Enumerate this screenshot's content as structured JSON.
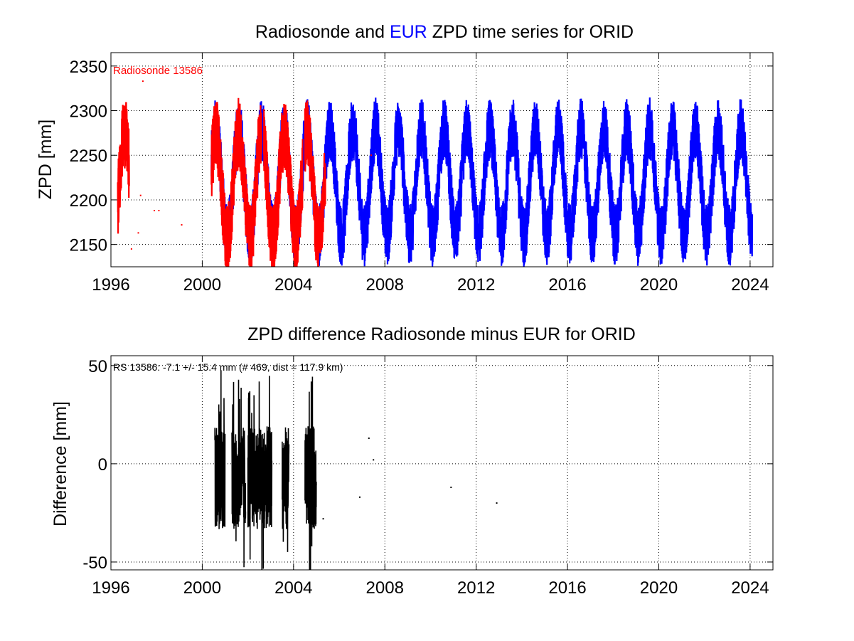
{
  "chart_data": [
    {
      "type": "line",
      "title_parts": [
        {
          "text": "Radiosonde and ",
          "color": "#000000"
        },
        {
          "text": "EUR",
          "color": "#0000ff"
        },
        {
          "text": " ZPD time series for ORID",
          "color": "#000000"
        }
      ],
      "ylabel": "ZPD [mm]",
      "xlim": [
        1996,
        2025
      ],
      "ylim": [
        2125,
        2365
      ],
      "xticks": [
        1996,
        2000,
        2004,
        2008,
        2012,
        2016,
        2020,
        2024
      ],
      "yticks": [
        2150,
        2200,
        2250,
        2300,
        2350
      ],
      "grid": true,
      "annotation": {
        "text": "Radiosonde 13586",
        "color": "#ff0000",
        "position": "top-left"
      },
      "series": [
        {
          "color": "#0000ff",
          "mean": 2220,
          "seasonal_amplitude": 60,
          "peak_month_fraction": 0.6,
          "noise_amplitude": 35,
          "x_start": 2000.4,
          "x_end": 2024.1,
          "dense_ranges": [
            [
              2000.4,
              2024.1
            ]
          ]
        },
        {
          "name": "Radiosonde 13586",
          "color": "#ff0000",
          "mean": 2215,
          "seasonal_amplitude": 60,
          "peak_month_fraction": 0.6,
          "noise_amplitude": 40,
          "dense_ranges": [
            [
              1996.3,
              1996.8
            ],
            [
              2000.4,
              2000.9
            ],
            [
              2000.9,
              2001.6
            ],
            [
              2001.6,
              2002.6
            ],
            [
              2002.7,
              2003.6
            ],
            [
              2003.6,
              2004.4
            ],
            [
              2004.5,
              2005.4
            ]
          ],
          "isolated_points": [
            [
              1996.6,
              2245
            ],
            [
              1997.3,
              2205
            ],
            [
              1997.9,
              2188
            ],
            [
              1996.9,
              2145
            ],
            [
              1997.2,
              2163
            ],
            [
              1997.4,
              2333
            ],
            [
              1998.1,
              2188
            ],
            [
              2007.4,
              2250
            ],
            [
              1999.1,
              2172
            ]
          ]
        }
      ]
    },
    {
      "type": "line",
      "title": "ZPD difference Radiosonde minus EUR for ORID",
      "ylabel": "Difference [mm]",
      "xlim": [
        1996,
        2025
      ],
      "ylim": [
        -54,
        55
      ],
      "xticks": [
        1996,
        2000,
        2004,
        2008,
        2012,
        2016,
        2020,
        2024
      ],
      "yticks": [
        -50,
        0,
        50
      ],
      "grid": true,
      "annotation": {
        "text": "RS 13586: -7.1 +/- 15.4 mm (# 469, dist = 117.9 km)",
        "color": "#000000",
        "position": "top-left"
      },
      "series": [
        {
          "color": "#000000",
          "mean": -7.1,
          "std": 15.4,
          "count": 469,
          "dense_ranges": [
            [
              2000.55,
              2001.0
            ],
            [
              2001.3,
              2001.9
            ],
            [
              2002.0,
              2003.05
            ],
            [
              2003.5,
              2003.8
            ],
            [
              2004.5,
              2005.0
            ]
          ],
          "isolated_points": [
            [
              2005.3,
              -28
            ],
            [
              2006.9,
              -17
            ],
            [
              2007.3,
              13
            ],
            [
              2007.5,
              2
            ],
            [
              2010.9,
              -12
            ],
            [
              2012.9,
              -20
            ]
          ]
        }
      ]
    }
  ]
}
